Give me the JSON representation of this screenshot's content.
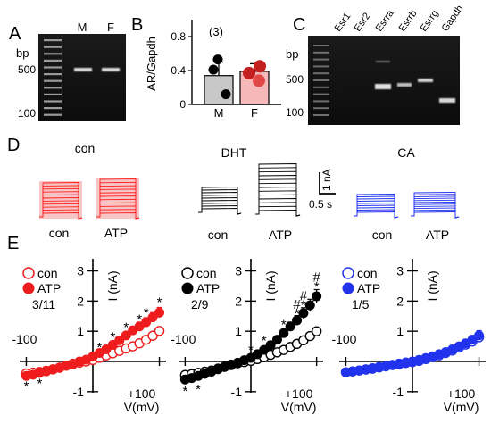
{
  "panel_letters": {
    "a": "A",
    "b": "B",
    "c": "C",
    "d": "D",
    "e": "E"
  },
  "panel_A": {
    "bp_label": "bp",
    "ladder_ticks": [
      "500",
      "100"
    ],
    "lanes": [
      "M",
      "F"
    ]
  },
  "panel_C": {
    "bp_label": "bp",
    "ladder_ticks": [
      "500",
      "100"
    ],
    "lanes": [
      "Esr1",
      "Esr2",
      "Esrra",
      "Esrrb",
      "Esrrg",
      "Gapdh"
    ]
  },
  "panel_D": {
    "groups": [
      {
        "title": "con",
        "labels": [
          "con",
          "ATP"
        ],
        "color": "#ff2020"
      },
      {
        "title": "DHT",
        "labels": [
          "con",
          "ATP"
        ],
        "color": "#000000"
      },
      {
        "title": "CA",
        "labels": [
          "con",
          "ATP"
        ],
        "color": "#2233ee"
      }
    ],
    "scalebar_current": "1 nA",
    "scalebar_time": "0.5 s"
  },
  "chart_data": [
    {
      "type": "bar",
      "panel": "B",
      "ylabel": "AR/Gapdh",
      "y_ticks": [
        "0",
        "0.4",
        "0.8"
      ],
      "ylim": [
        0,
        1.0
      ],
      "n_label": "(3)",
      "categories": [
        "M",
        "F"
      ],
      "values": [
        0.34,
        0.39
      ],
      "errors": [
        0.16,
        0.09
      ],
      "bar_colors": [
        "#c8c8c8",
        "#f6b8b8"
      ],
      "points": [
        [
          0.53,
          0.12,
          0.41
        ],
        [
          0.45,
          0.37,
          0.28
        ]
      ]
    },
    {
      "type": "scatter",
      "panel": "E1",
      "color": "#ee1c1c",
      "ratio_label": "3/11",
      "x_tick_labels": [
        "-100",
        "+100"
      ],
      "y_tick_labels": [
        "3",
        "2",
        "1",
        "-1"
      ],
      "xlabel": "V(mV)",
      "ylabel": "I (nA)",
      "xlim": [
        -110,
        110
      ],
      "ylim": [
        -1.2,
        3.4
      ],
      "x": [
        -100,
        -90,
        -80,
        -70,
        -60,
        -50,
        -40,
        -30,
        -20,
        -10,
        0,
        10,
        20,
        30,
        40,
        50,
        60,
        70,
        80,
        90,
        100
      ],
      "series": [
        {
          "name": "con",
          "marker": "open",
          "values": [
            -0.4,
            -0.37,
            -0.35,
            -0.31,
            -0.26,
            -0.21,
            -0.14,
            -0.09,
            -0.04,
            0.0,
            0.05,
            0.12,
            0.2,
            0.27,
            0.35,
            0.43,
            0.5,
            0.6,
            0.72,
            0.85,
            1.01
          ]
        },
        {
          "name": "ATP",
          "marker": "filled",
          "values": [
            -0.48,
            -0.44,
            -0.38,
            -0.33,
            -0.27,
            -0.2,
            -0.14,
            -0.07,
            0.0,
            0.06,
            0.16,
            0.28,
            0.4,
            0.55,
            0.7,
            0.86,
            1.03,
            1.16,
            1.3,
            1.46,
            1.62
          ]
        }
      ],
      "error_y": [
        0.1,
        0.1,
        0.09,
        0.09,
        0.08,
        0.08,
        0.07,
        0.07,
        0.07,
        0.07,
        0.07,
        0.08,
        0.09,
        0.1,
        0.11,
        0.12,
        0.13,
        0.14,
        0.15,
        0.16,
        0.17
      ],
      "annotations": [
        {
          "x": -100,
          "y": -0.78,
          "text": "*"
        },
        {
          "x": -80,
          "y": -0.7,
          "text": "*"
        },
        {
          "x": 10,
          "y": 0.5,
          "text": "*"
        },
        {
          "x": 30,
          "y": 0.85,
          "text": "*"
        },
        {
          "x": 50,
          "y": 1.17,
          "text": "*"
        },
        {
          "x": 70,
          "y": 1.43,
          "text": "*"
        },
        {
          "x": 80,
          "y": 1.65,
          "text": "*"
        },
        {
          "x": 100,
          "y": 2.0,
          "text": "*"
        }
      ]
    },
    {
      "type": "scatter",
      "panel": "E2",
      "color": "#000000",
      "ratio_label": "2/9",
      "x_tick_labels": [
        "-100",
        "+100"
      ],
      "y_tick_labels": [
        "3",
        "2",
        "1",
        "-1"
      ],
      "xlabel": "V(mV)",
      "ylabel": "I (nA)",
      "xlim": [
        -110,
        110
      ],
      "ylim": [
        -1.2,
        3.4
      ],
      "x": [
        -100,
        -90,
        -80,
        -70,
        -60,
        -50,
        -40,
        -30,
        -20,
        -10,
        0,
        10,
        20,
        30,
        40,
        50,
        60,
        70,
        80,
        90,
        100
      ],
      "series": [
        {
          "name": "con",
          "marker": "open",
          "values": [
            -0.45,
            -0.42,
            -0.38,
            -0.34,
            -0.3,
            -0.24,
            -0.18,
            -0.12,
            -0.06,
            -0.02,
            0.02,
            0.08,
            0.14,
            0.22,
            0.3,
            0.38,
            0.48,
            0.58,
            0.7,
            0.84,
            1.0
          ]
        },
        {
          "name": "ATP",
          "marker": "filled",
          "values": [
            -0.6,
            -0.55,
            -0.48,
            -0.41,
            -0.34,
            -0.26,
            -0.18,
            -0.1,
            -0.04,
            0.04,
            0.12,
            0.24,
            0.38,
            0.54,
            0.72,
            0.94,
            1.16,
            1.36,
            1.6,
            1.86,
            2.16
          ]
        }
      ],
      "error_y": [
        0.1,
        0.1,
        0.09,
        0.09,
        0.08,
        0.08,
        0.07,
        0.07,
        0.07,
        0.07,
        0.07,
        0.08,
        0.09,
        0.1,
        0.11,
        0.12,
        0.14,
        0.16,
        0.18,
        0.2,
        0.22
      ],
      "annotations": [
        {
          "x": -100,
          "y": -0.95,
          "text": "*"
        },
        {
          "x": -80,
          "y": -0.88,
          "text": "*"
        },
        {
          "x": 0,
          "y": 0.42,
          "text": "*"
        },
        {
          "x": 20,
          "y": 0.72,
          "text": "*"
        },
        {
          "x": 50,
          "y": 1.25,
          "text": "*"
        },
        {
          "x": 70,
          "y": 1.62,
          "text": "*"
        },
        {
          "x": 70,
          "y": 1.92,
          "text": "#"
        },
        {
          "x": 80,
          "y": 1.9,
          "text": "*"
        },
        {
          "x": 80,
          "y": 2.2,
          "text": "#"
        },
        {
          "x": 100,
          "y": 2.52,
          "text": "*"
        },
        {
          "x": 100,
          "y": 2.82,
          "text": "#"
        }
      ]
    },
    {
      "type": "scatter",
      "panel": "E3",
      "color": "#2233ee",
      "ratio_label": "1/5",
      "x_tick_labels": [
        "-100",
        "+100"
      ],
      "y_tick_labels": [
        "3",
        "2",
        "1",
        "-1"
      ],
      "xlabel": "V(mV)",
      "ylabel": "I (nA)",
      "xlim": [
        -110,
        110
      ],
      "ylim": [
        -1.2,
        3.4
      ],
      "x": [
        -100,
        -90,
        -80,
        -70,
        -60,
        -50,
        -40,
        -30,
        -20,
        -10,
        0,
        10,
        20,
        30,
        40,
        50,
        60,
        70,
        80,
        90,
        100
      ],
      "series": [
        {
          "name": "con",
          "marker": "open",
          "values": [
            -0.36,
            -0.33,
            -0.3,
            -0.27,
            -0.24,
            -0.2,
            -0.16,
            -0.12,
            -0.09,
            -0.05,
            -0.02,
            0.02,
            0.08,
            0.14,
            0.2,
            0.28,
            0.36,
            0.46,
            0.56,
            0.66,
            0.8
          ]
        },
        {
          "name": "ATP",
          "marker": "filled",
          "values": [
            -0.36,
            -0.33,
            -0.3,
            -0.26,
            -0.22,
            -0.18,
            -0.15,
            -0.11,
            -0.07,
            -0.03,
            0.0,
            0.05,
            0.11,
            0.17,
            0.24,
            0.31,
            0.4,
            0.5,
            0.6,
            0.72,
            0.86
          ]
        }
      ],
      "error_y": [
        0.08,
        0.08,
        0.07,
        0.07,
        0.07,
        0.07,
        0.06,
        0.06,
        0.06,
        0.06,
        0.06,
        0.07,
        0.07,
        0.08,
        0.09,
        0.1,
        0.11,
        0.12,
        0.13,
        0.14,
        0.16
      ],
      "annotations": []
    }
  ]
}
